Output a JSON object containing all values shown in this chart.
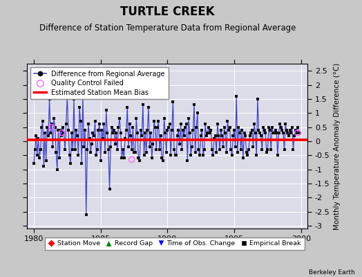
{
  "title": "TURTLE CREEK",
  "subtitle": "Difference of Station Temperature Data from Regional Average",
  "ylabel": "Monthly Temperature Anomaly Difference (°C)",
  "xlabel_credit": "Berkeley Earth",
  "xlim": [
    1979.5,
    2000.5
  ],
  "ylim": [
    -3.1,
    2.75
  ],
  "yticks": [
    -3,
    -2.5,
    -2,
    -1.5,
    -1,
    -0.5,
    0,
    0.5,
    1,
    1.5,
    2,
    2.5
  ],
  "xticks": [
    1980,
    1985,
    1990,
    1995,
    2000
  ],
  "mean_bias": 0.05,
  "line_color": "#4444CC",
  "dot_color": "#111111",
  "bias_color": "#FF0000",
  "qc_color": "#FF66FF",
  "background_color": "#DCDCE8",
  "grid_color": "#FFFFFF",
  "title_fontsize": 12,
  "subtitle_fontsize": 8.5,
  "ylabel_fontsize": 7.5,
  "tick_fontsize": 8,
  "time_series": [
    -0.8,
    -0.3,
    0.2,
    -0.5,
    0.1,
    -0.6,
    -0.3,
    0.5,
    0.7,
    -0.9,
    0.3,
    -0.7,
    0.5,
    0.2,
    1.5,
    0.3,
    0.6,
    -0.2,
    0.8,
    0.5,
    -0.4,
    -1.0,
    0.4,
    -0.6,
    0.4,
    0.2,
    0.5,
    0.3,
    -0.3,
    0.6,
    1.6,
    0.4,
    -0.5,
    -0.8,
    0.3,
    -0.3,
    1.5,
    -0.3,
    0.4,
    0.2,
    -0.5,
    1.2,
    0.7,
    -0.8,
    1.6,
    -0.2,
    0.4,
    -2.6,
    -0.3,
    0.6,
    0.1,
    -0.4,
    -0.1,
    0.3,
    0.2,
    0.7,
    -0.5,
    -0.3,
    0.4,
    0.6,
    -0.7,
    0.4,
    0.1,
    0.6,
    -0.4,
    1.1,
    0.3,
    -0.3,
    -1.7,
    -0.2,
    0.5,
    0.3,
    0.4,
    -0.1,
    0.3,
    -0.3,
    0.5,
    0.8,
    0.3,
    -0.6,
    -0.3,
    -0.6,
    0.1,
    0.4,
    1.2,
    -0.2,
    0.6,
    0.2,
    -0.3,
    0.5,
    -0.4,
    -0.4,
    0.8,
    0.3,
    -0.6,
    -0.7,
    0.4,
    0.2,
    1.3,
    -0.5,
    0.3,
    -0.4,
    0.4,
    1.2,
    -0.2,
    0.3,
    -0.6,
    -0.1,
    0.7,
    0.5,
    -0.3,
    0.5,
    0.7,
    -0.3,
    0.2,
    -0.6,
    -0.7,
    0.8,
    0.3,
    -0.4,
    0.4,
    0.5,
    0.6,
    -0.5,
    0.4,
    1.4,
    -0.3,
    -0.5,
    -0.5,
    0.2,
    0.4,
    -0.1,
    0.6,
    -0.3,
    0.4,
    0.2,
    0.5,
    0.6,
    -0.7,
    0.8,
    0.3,
    -0.5,
    -0.2,
    0.4,
    1.3,
    -0.4,
    0.5,
    1.0,
    -0.3,
    -0.5,
    0.2,
    0.4,
    -0.5,
    -0.3,
    0.6,
    0.2,
    0.3,
    0.5,
    0.3,
    0.4,
    -0.3,
    -0.5,
    0.1,
    0.2,
    -0.4,
    0.6,
    0.2,
    -0.3,
    0.4,
    0.2,
    -0.2,
    0.5,
    0.3,
    -0.4,
    0.7,
    0.4,
    0.5,
    -0.3,
    -0.5,
    0.2,
    0.4,
    -0.2,
    1.6,
    -0.4,
    0.5,
    0.3,
    -0.3,
    0.4,
    -0.6,
    0.3,
    0.2,
    -0.4,
    -0.5,
    -0.3,
    0.2,
    0.3,
    0.4,
    -0.2,
    0.6,
    0.3,
    -0.5,
    1.5,
    0.4,
    0.3,
    0.2,
    -0.3,
    0.5,
    0.4,
    0.3,
    -0.4,
    -0.3,
    0.5,
    0.4,
    -0.3,
    0.5,
    0.3,
    0.3,
    0.4,
    0.3,
    -0.5,
    0.3,
    0.6,
    0.5,
    0.4,
    0.3,
    -0.3,
    0.6,
    0.4,
    0.3,
    0.2,
    0.4,
    0.3,
    0.5,
    -0.3,
    0.2,
    0.4,
    0.3,
    0.5,
    0.3,
    0.3
  ],
  "qc_failed_times": [
    1981.33,
    1982.08,
    1987.33,
    1999.75
  ],
  "qc_failed_vals": [
    0.5,
    0.3,
    -0.65,
    0.3
  ]
}
